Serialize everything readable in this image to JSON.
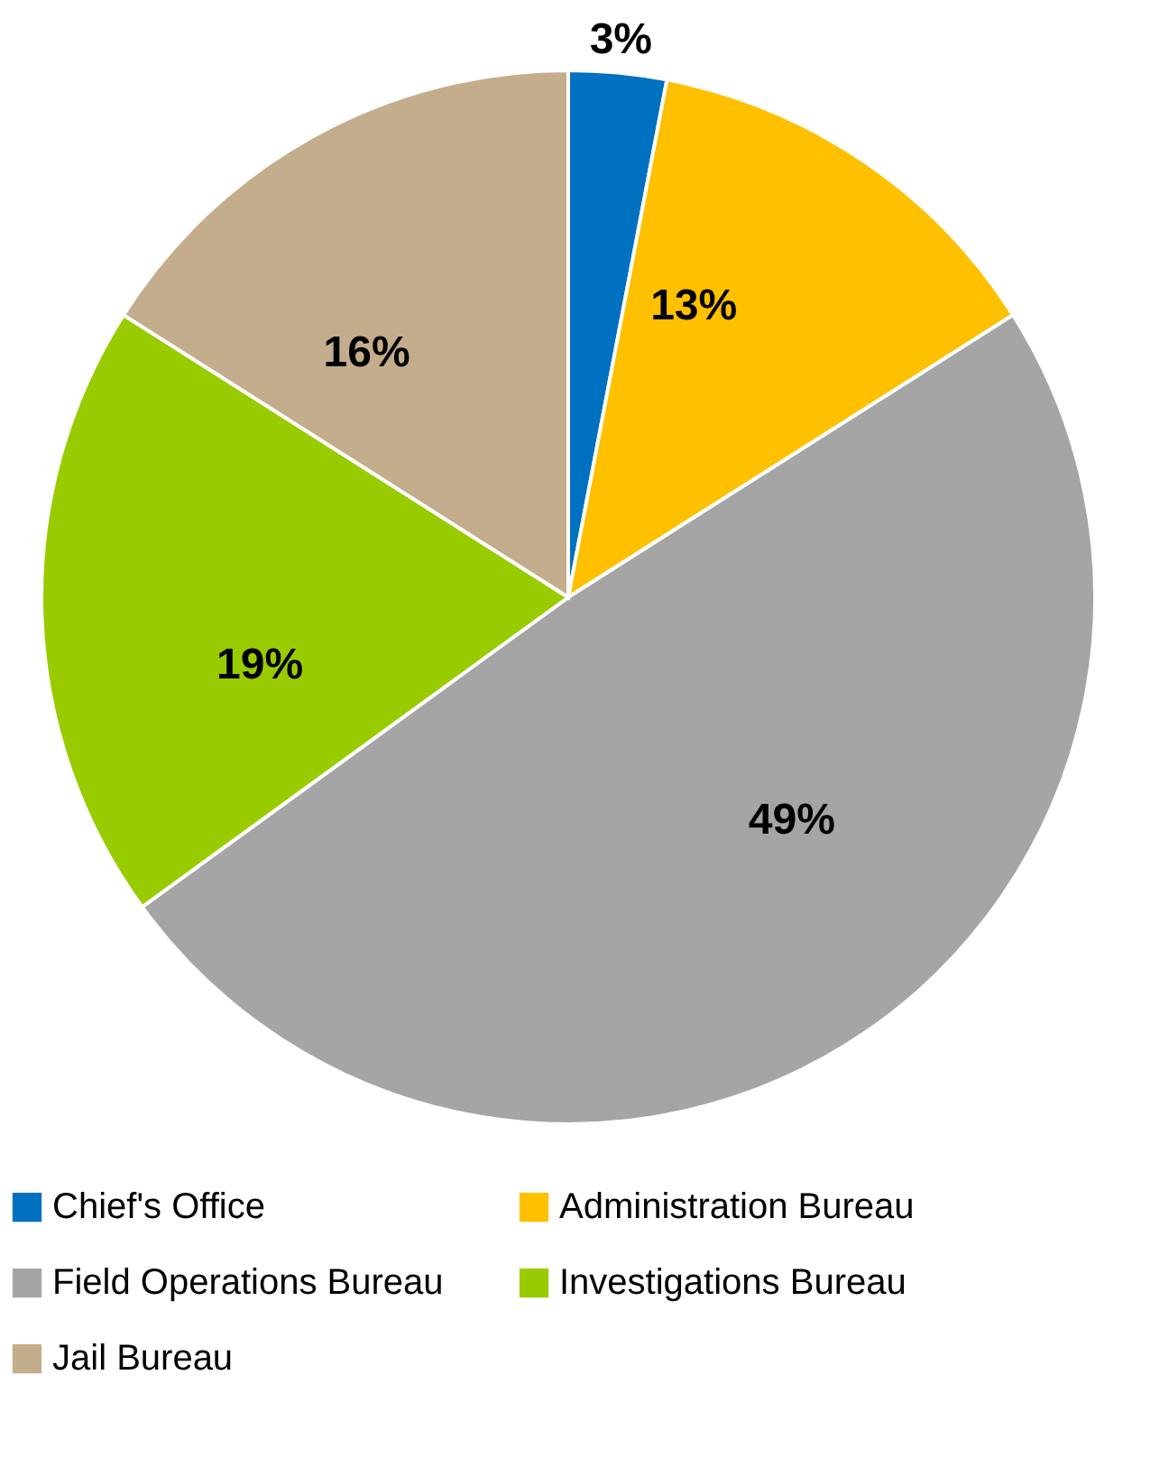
{
  "chart_data": {
    "type": "pie",
    "categories": [
      "Chief's Office",
      "Administration Bureau",
      "Field Operations Bureau",
      "Investigations Bureau",
      "Jail Bureau"
    ],
    "values": [
      3,
      13,
      49,
      19,
      16
    ],
    "value_labels": [
      "3%",
      "13%",
      "49%",
      "19%",
      "16%"
    ],
    "colors": [
      "#0070c0",
      "#ffc000",
      "#a5a5a5",
      "#99cc00",
      "#c4ad8c"
    ],
    "legend": "bottom"
  }
}
